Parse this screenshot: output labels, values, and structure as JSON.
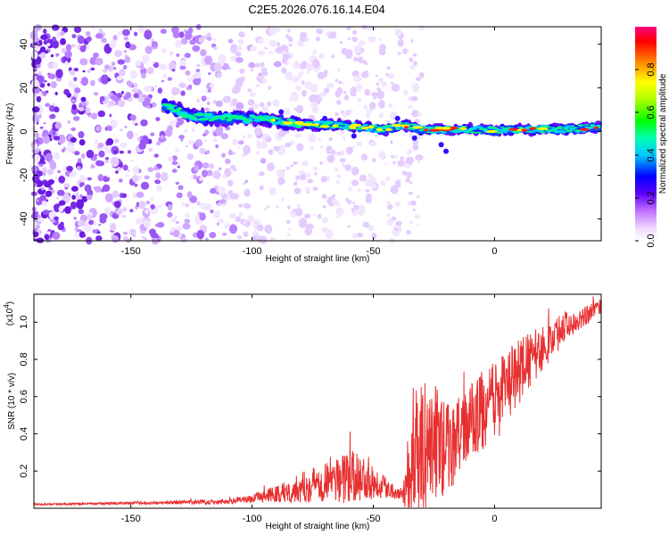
{
  "chart_data": [
    {
      "type": "heatmap",
      "title": "C2E5.2026.076.16.14.E04",
      "xlabel": "Height of straight line (km)",
      "ylabel": "Frequency (Hz)",
      "xlim": [
        -190,
        44
      ],
      "ylim": [
        -50,
        48
      ],
      "xticks": [
        -150,
        -100,
        -50,
        0
      ],
      "xtick_labels": [
        "-150",
        "-100",
        "-50",
        "0"
      ],
      "yticks": [
        40,
        20,
        0,
        -20,
        -40
      ],
      "ytick_labels": [
        "40",
        "20",
        "0",
        "-20",
        "-40"
      ],
      "colorbar": {
        "label": "Normalized spectral amplitude",
        "range": [
          0,
          1
        ],
        "ticks": [
          0.0,
          0.2,
          0.4,
          0.6,
          0.8
        ],
        "tick_labels": [
          "0.0",
          "0.2",
          "0.4",
          "0.6",
          "0.8"
        ]
      },
      "signal_band": [
        {
          "x": -136,
          "f": 12
        },
        {
          "x": -125,
          "f": 7
        },
        {
          "x": -110,
          "f": 6
        },
        {
          "x": -95,
          "f": 6
        },
        {
          "x": -85,
          "f": 4
        },
        {
          "x": -75,
          "f": 3
        },
        {
          "x": -65,
          "f": 3
        },
        {
          "x": -55,
          "f": 2
        },
        {
          "x": -45,
          "f": 1
        },
        {
          "x": -38,
          "f": 3
        },
        {
          "x": -30,
          "f": 1
        },
        {
          "x": -20,
          "f": 1
        },
        {
          "x": -10,
          "f": 1
        },
        {
          "x": 0,
          "f": 0.5
        },
        {
          "x": 10,
          "f": 1
        },
        {
          "x": 20,
          "f": 1
        },
        {
          "x": 30,
          "f": 1
        },
        {
          "x": 42,
          "f": 2
        }
      ]
    },
    {
      "type": "line",
      "xlabel": "Height of straight line (km)",
      "ylabel": "SNR (10 * v/v)",
      "y_scale_label": "(x10",
      "y_scale_exp": "4",
      "y_scale_close": ")",
      "xlim": [
        -190,
        44
      ],
      "ylim": [
        0,
        1.15
      ],
      "xticks": [
        -150,
        -100,
        -50,
        0
      ],
      "xtick_labels": [
        "-150",
        "-100",
        "-50",
        "0"
      ],
      "yticks": [
        0.2,
        0.4,
        0.6,
        0.8,
        1.0
      ],
      "ytick_labels": [
        "0.2",
        "0.4",
        "0.6",
        "0.8",
        "1.0"
      ],
      "color": "#e83030",
      "envelope": {
        "x": [
          -190,
          -160,
          -130,
          -110,
          -100,
          -90,
          -80,
          -70,
          -60,
          -52,
          -45,
          -38,
          -35,
          -30,
          -25,
          -20,
          -15,
          -10,
          -5,
          0,
          5,
          10,
          20,
          30,
          44
        ],
        "base": [
          0.02,
          0.025,
          0.03,
          0.035,
          0.05,
          0.07,
          0.1,
          0.14,
          0.15,
          0.15,
          0.11,
          0.07,
          0.15,
          0.28,
          0.32,
          0.3,
          0.35,
          0.45,
          0.5,
          0.55,
          0.62,
          0.72,
          0.85,
          0.98,
          1.08
        ],
        "amp": [
          0.005,
          0.006,
          0.01,
          0.015,
          0.02,
          0.05,
          0.08,
          0.12,
          0.14,
          0.12,
          0.06,
          0.03,
          0.25,
          0.35,
          0.35,
          0.25,
          0.22,
          0.2,
          0.22,
          0.22,
          0.2,
          0.18,
          0.12,
          0.08,
          0.04
        ]
      }
    }
  ]
}
